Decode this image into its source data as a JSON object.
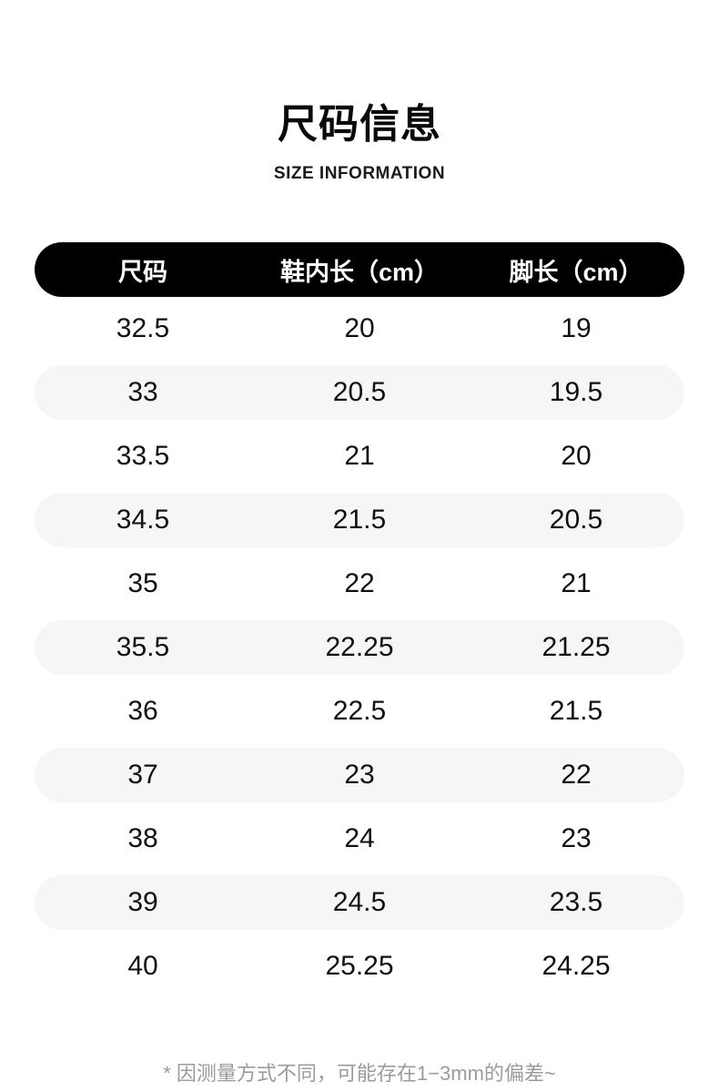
{
  "page": {
    "title": "尺码信息",
    "subtitle": "SIZE INFORMATION",
    "footnote": "* 因测量方式不同，可能存在1−3mm的偏差~"
  },
  "colors": {
    "background": "#ffffff",
    "header_bar_bg": "#000000",
    "header_bar_text": "#ffffff",
    "alt_row_bg": "#f6f6f6",
    "body_text": "#111111",
    "footnote_text": "#9b9b9b"
  },
  "chart_data": {
    "type": "table",
    "title": "尺码信息",
    "subtitle": "SIZE INFORMATION",
    "columns": [
      "尺码",
      "鞋内长（cm）",
      "脚长（cm）"
    ],
    "rows": [
      [
        "32.5",
        "20",
        "19"
      ],
      [
        "33",
        "20.5",
        "19.5"
      ],
      [
        "33.5",
        "21",
        "20"
      ],
      [
        "34.5",
        "21.5",
        "20.5"
      ],
      [
        "35",
        "22",
        "21"
      ],
      [
        "35.5",
        "22.25",
        "21.25"
      ],
      [
        "36",
        "22.5",
        "21.5"
      ],
      [
        "37",
        "23",
        "22"
      ],
      [
        "38",
        "24",
        "23"
      ],
      [
        "39",
        "24.5",
        "23.5"
      ],
      [
        "40",
        "25.25",
        "24.25"
      ]
    ],
    "note": "* 因测量方式不同，可能存在1−3mm的偏差~",
    "layout": {
      "header_style": "black-pill",
      "alternating_rows": true,
      "alt_rows_start_index": 1
    }
  }
}
